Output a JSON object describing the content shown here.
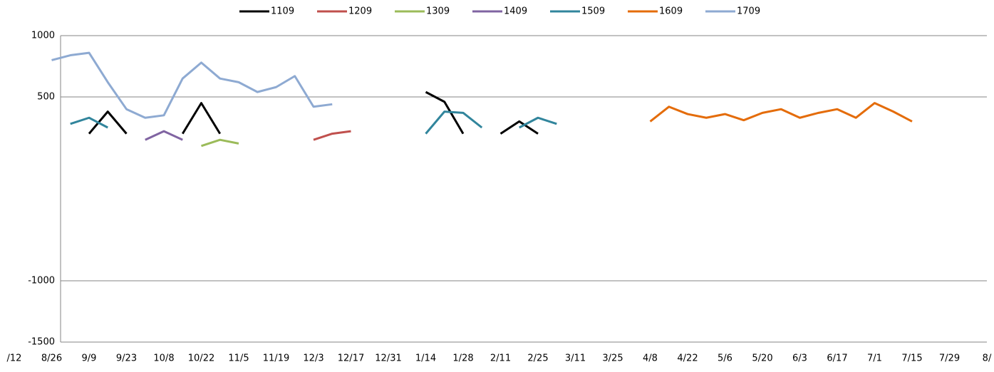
{
  "chart_data": {
    "type": "line",
    "categories": [
      "/12",
      null,
      "8/26",
      null,
      "9/9",
      null,
      "9/23",
      null,
      "10/8",
      null,
      "10/22",
      null,
      "11/5",
      null,
      "11/19",
      null,
      "12/3",
      null,
      "12/17",
      null,
      "12/31",
      null,
      "1/14",
      null,
      "1/28",
      null,
      "2/11",
      null,
      "2/25",
      null,
      "3/11",
      null,
      "3/25",
      null,
      "4/8",
      null,
      "4/22",
      null,
      "5/6",
      null,
      "5/20",
      null,
      "6/3",
      null,
      "6/17",
      null,
      "7/1",
      null,
      "7/15",
      null,
      "7/29",
      null,
      "8/"
    ],
    "series": [
      {
        "name": "1109",
        "color": "#000000",
        "values": [
          null,
          null,
          null,
          null,
          200,
          380,
          200,
          null,
          null,
          200,
          450,
          200,
          null,
          null,
          null,
          null,
          null,
          null,
          null,
          null,
          null,
          null,
          540,
          460,
          200,
          null,
          200,
          300,
          200,
          null,
          null,
          null,
          null,
          null,
          null,
          null,
          null,
          null,
          null,
          null,
          null,
          null,
          null,
          null,
          null,
          null,
          null,
          null,
          null,
          null,
          null,
          null,
          null
        ]
      },
      {
        "name": "1209",
        "color": "#c0504d",
        "values": [
          null,
          null,
          null,
          null,
          null,
          null,
          null,
          null,
          null,
          null,
          null,
          null,
          null,
          null,
          null,
          null,
          150,
          200,
          220,
          null,
          null,
          null,
          null,
          null,
          null,
          null,
          null,
          null,
          null,
          null,
          null,
          null,
          null,
          null,
          null,
          null,
          null,
          null,
          null,
          null,
          null,
          null,
          null,
          null,
          null,
          null,
          null,
          null,
          null,
          null,
          null,
          null,
          null
        ]
      },
      {
        "name": "1309",
        "color": "#9bbb59",
        "values": [
          null,
          null,
          null,
          null,
          null,
          null,
          null,
          null,
          null,
          null,
          100,
          150,
          120,
          null,
          null,
          null,
          null,
          null,
          null,
          null,
          null,
          null,
          null,
          null,
          null,
          null,
          null,
          null,
          null,
          null,
          null,
          null,
          null,
          null,
          null,
          null,
          null,
          null,
          null,
          null,
          null,
          null,
          null,
          null,
          null,
          null,
          null,
          null,
          null,
          null,
          null,
          null,
          null
        ]
      },
      {
        "name": "1409",
        "color": "#8064a2",
        "values": [
          null,
          null,
          null,
          null,
          null,
          null,
          null,
          150,
          220,
          150,
          null,
          null,
          null,
          null,
          null,
          null,
          null,
          null,
          null,
          null,
          null,
          null,
          null,
          null,
          null,
          null,
          null,
          null,
          null,
          null,
          null,
          null,
          null,
          null,
          null,
          null,
          null,
          null,
          null,
          null,
          null,
          null,
          null,
          null,
          null,
          null,
          null,
          null,
          null,
          null,
          null,
          null,
          null
        ]
      },
      {
        "name": "1509",
        "color": "#31859c",
        "values": [
          null,
          null,
          null,
          280,
          330,
          250,
          null,
          null,
          null,
          null,
          null,
          null,
          null,
          null,
          null,
          null,
          null,
          null,
          null,
          null,
          null,
          null,
          200,
          380,
          370,
          250,
          null,
          250,
          330,
          280,
          null,
          null,
          null,
          null,
          null,
          null,
          null,
          null,
          null,
          null,
          null,
          null,
          null,
          null,
          null,
          null,
          null,
          null,
          null,
          null,
          null,
          null,
          null
        ]
      },
      {
        "name": "1609",
        "color": "#e46c0a",
        "values": [
          null,
          null,
          null,
          null,
          null,
          null,
          null,
          null,
          null,
          null,
          null,
          null,
          null,
          null,
          null,
          null,
          null,
          null,
          null,
          null,
          null,
          null,
          null,
          null,
          null,
          null,
          null,
          null,
          null,
          null,
          null,
          null,
          null,
          null,
          300,
          420,
          360,
          330,
          360,
          310,
          370,
          400,
          330,
          370,
          400,
          330,
          450,
          380,
          300,
          null,
          null,
          null,
          null
        ]
      },
      {
        "name": "1709",
        "color": "#8eaad2",
        "values": [
          null,
          null,
          800,
          840,
          860,
          620,
          400,
          330,
          350,
          650,
          780,
          650,
          620,
          540,
          580,
          670,
          420,
          440,
          null,
          null,
          null,
          null,
          null,
          null,
          null,
          null,
          null,
          null,
          null,
          null,
          null,
          null,
          null,
          null,
          null,
          null,
          null,
          null,
          null,
          null,
          null,
          null,
          null,
          null,
          null,
          null,
          null,
          null,
          null,
          null,
          null,
          null,
          null
        ]
      }
    ],
    "ylim": [
      -1500,
      1000
    ],
    "yticks": [
      -1500,
      -1000,
      500,
      1000
    ],
    "grid": true,
    "legend": "top"
  }
}
